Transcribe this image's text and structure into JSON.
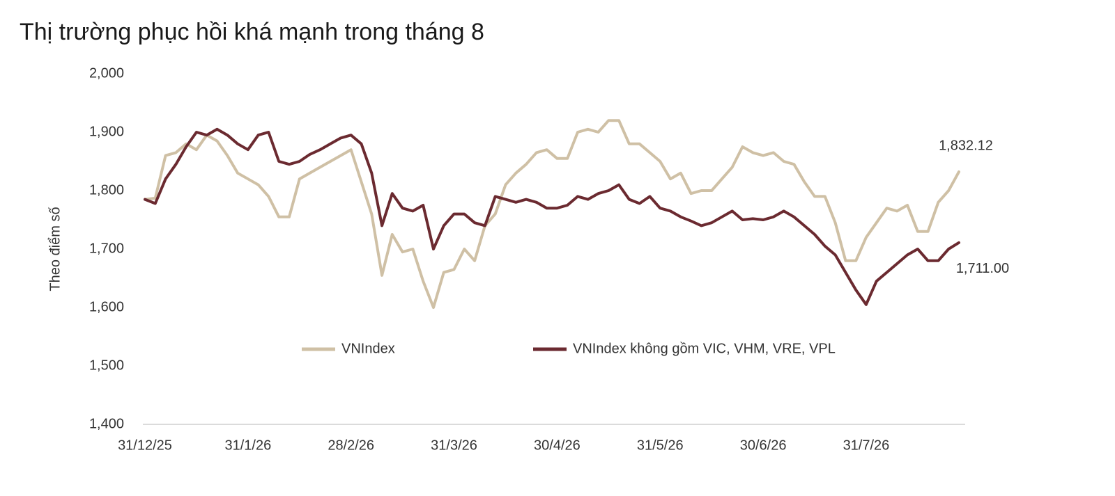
{
  "chart_data": {
    "type": "line",
    "title": "Thị trường phục hồi khá mạnh trong tháng 8",
    "y_label": "Theo điểm số",
    "categories": [
      "31/12/25",
      null,
      null,
      null,
      null,
      null,
      null,
      null,
      null,
      null,
      "31/1/26",
      null,
      null,
      null,
      null,
      null,
      null,
      null,
      null,
      null,
      "28/2/26",
      null,
      null,
      null,
      null,
      null,
      null,
      null,
      null,
      null,
      "31/3/26",
      null,
      null,
      null,
      null,
      null,
      null,
      null,
      null,
      null,
      "30/4/26",
      null,
      null,
      null,
      null,
      null,
      null,
      null,
      null,
      null,
      "31/5/26",
      null,
      null,
      null,
      null,
      null,
      null,
      null,
      null,
      null,
      "30/6/26",
      null,
      null,
      null,
      null,
      null,
      null,
      null,
      null,
      null,
      "31/7/26",
      null,
      null,
      null,
      null,
      null,
      null,
      null,
      null,
      null
    ],
    "series": [
      {
        "name": "VNIndex",
        "color": "#cfc0a5",
        "values": [
          1785,
          1787,
          1860,
          1865,
          1880,
          1870,
          1895,
          1885,
          1860,
          1830,
          1820,
          1810,
          1790,
          1755,
          1755,
          1820,
          1830,
          1840,
          1850,
          1860,
          1870,
          1815,
          1760,
          1655,
          1725,
          1695,
          1700,
          1645,
          1600,
          1660,
          1665,
          1700,
          1680,
          1740,
          1760,
          1810,
          1830,
          1845,
          1865,
          1870,
          1855,
          1855,
          1900,
          1905,
          1900,
          1920,
          1920,
          1880,
          1880,
          1865,
          1850,
          1820,
          1830,
          1795,
          1800,
          1800,
          1820,
          1840,
          1875,
          1865,
          1860,
          1865,
          1850,
          1845,
          1815,
          1790,
          1790,
          1745,
          1680,
          1680,
          1720,
          1745,
          1770,
          1765,
          1775,
          1730,
          1730,
          1780,
          1800,
          1832.12
        ],
        "value_labels": [
          null,
          null,
          null,
          null,
          null,
          null,
          null,
          null,
          null,
          null,
          null,
          null,
          null,
          null,
          null,
          null,
          null,
          null,
          null,
          null,
          null,
          null,
          null,
          null,
          null,
          null,
          null,
          null,
          null,
          null,
          null,
          null,
          null,
          null,
          null,
          null,
          null,
          null,
          null,
          null,
          null,
          null,
          null,
          null,
          null,
          null,
          null,
          null,
          null,
          null,
          null,
          null,
          null,
          null,
          null,
          null,
          null,
          null,
          null,
          null,
          null,
          null,
          null,
          null,
          null,
          null,
          null,
          null,
          null,
          null,
          null,
          null,
          null,
          null,
          null,
          null,
          null,
          null,
          null,
          "1,832.12"
        ]
      },
      {
        "name": "VNIndex không gồm VIC, VHM, VRE, VPL",
        "color": "#6b2a30",
        "values": [
          1785,
          1778,
          1820,
          1845,
          1875,
          1900,
          1895,
          1905,
          1895,
          1880,
          1870,
          1895,
          1900,
          1850,
          1845,
          1850,
          1862,
          1870,
          1880,
          1890,
          1895,
          1880,
          1830,
          1740,
          1795,
          1770,
          1765,
          1775,
          1700,
          1740,
          1760,
          1760,
          1745,
          1740,
          1790,
          1785,
          1780,
          1785,
          1780,
          1770,
          1770,
          1775,
          1790,
          1785,
          1795,
          1800,
          1810,
          1785,
          1778,
          1790,
          1770,
          1765,
          1755,
          1748,
          1740,
          1745,
          1755,
          1765,
          1750,
          1752,
          1750,
          1755,
          1765,
          1755,
          1740,
          1725,
          1705,
          1690,
          1660,
          1630,
          1605,
          1645,
          1660,
          1675,
          1690,
          1700,
          1680,
          1680,
          1700,
          1711.0
        ],
        "value_labels": [
          null,
          null,
          null,
          null,
          null,
          null,
          null,
          null,
          null,
          null,
          null,
          null,
          null,
          null,
          null,
          null,
          null,
          null,
          null,
          null,
          null,
          null,
          null,
          null,
          null,
          null,
          null,
          null,
          null,
          null,
          null,
          null,
          null,
          null,
          null,
          null,
          null,
          null,
          null,
          null,
          null,
          null,
          null,
          null,
          null,
          null,
          null,
          null,
          null,
          null,
          null,
          null,
          null,
          null,
          null,
          null,
          null,
          null,
          null,
          null,
          null,
          null,
          null,
          null,
          null,
          null,
          null,
          null,
          null,
          null,
          null,
          null,
          null,
          null,
          null,
          null,
          null,
          null,
          null,
          "1,711.00"
        ]
      }
    ],
    "ylim": [
      1400,
      2000
    ],
    "yticks": [
      {
        "value": 1400,
        "label": "1,400"
      },
      {
        "value": 1500,
        "label": "1,500"
      },
      {
        "value": 1600,
        "label": "1,600"
      },
      {
        "value": 1700,
        "label": "1,700"
      },
      {
        "value": 1800,
        "label": "1,800"
      },
      {
        "value": 1900,
        "label": "1,900"
      },
      {
        "value": 2000,
        "label": "2,000"
      }
    ],
    "grid": false,
    "legend": "center"
  }
}
